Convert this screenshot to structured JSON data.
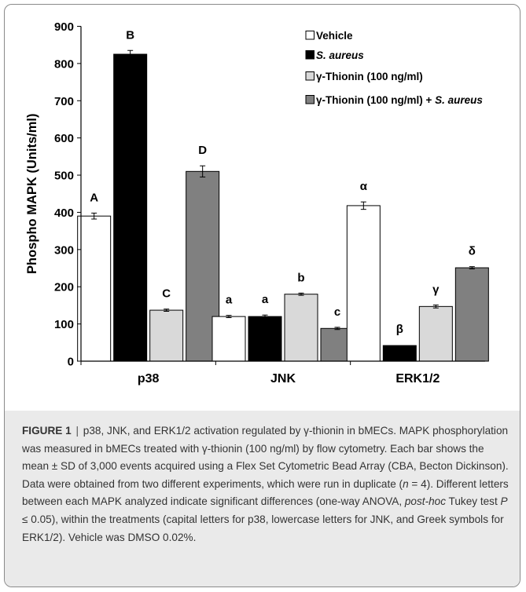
{
  "chart_data": {
    "type": "bar",
    "ylabel": "Phospho MAPK (Units/ml)",
    "xlabel": "",
    "ylim": [
      0,
      900
    ],
    "yticks": [
      0,
      100,
      200,
      300,
      400,
      500,
      600,
      700,
      800,
      900
    ],
    "categories": [
      "p38",
      "JNK",
      "ERK1/2"
    ],
    "series": [
      {
        "name": "Vehicle",
        "color": "#ffffff",
        "values": [
          390,
          120,
          418
        ],
        "errors": [
          8,
          3,
          10
        ],
        "letters": [
          "A",
          "a",
          "α"
        ]
      },
      {
        "name": "S. aureus",
        "color": "#000000",
        "values": [
          825,
          120,
          42
        ],
        "errors": [
          10,
          4,
          0
        ],
        "letters": [
          "B",
          "a",
          "β"
        ]
      },
      {
        "name": "γ-Thionin (100 ng/ml)",
        "color": "#d9d9d9",
        "values": [
          137,
          180,
          147
        ],
        "errors": [
          3,
          3,
          4
        ],
        "letters": [
          "C",
          "b",
          "γ"
        ]
      },
      {
        "name": "γ-Thionin (100 ng/ml) + S. aureus",
        "color": "#808080",
        "values": [
          510,
          88,
          251
        ],
        "errors": [
          15,
          3,
          3
        ],
        "letters": [
          "D",
          "c",
          "δ"
        ]
      }
    ],
    "legend": {
      "position": "top-right",
      "entries": [
        {
          "plain": "Vehicle",
          "italic": ""
        },
        {
          "plain": "",
          "italic": "S. aureus"
        },
        {
          "plain": "γ-Thionin (100 ng/ml)",
          "italic": ""
        },
        {
          "plain": "γ-Thionin (100 ng/ml) + ",
          "italic": "S. aureus"
        }
      ]
    }
  },
  "caption": {
    "label": "FIGURE 1",
    "separator": "|",
    "html": "p38, JNK, and ERK1/2 activation regulated by γ-thionin in bMECs. MAPK phosphorylation was measured in bMECs treated with γ-thionin (100 ng/ml) by flow cytometry. Each bar shows the mean ± SD of 3,000 events acquired using a Flex Set Cytometric Bead Array (CBA, Becton Dickinson). Data were obtained from two different experiments, which were run in duplicate (<i>n</i> = 4). Different letters between each MAPK analyzed indicate significant differences (one-way ANOVA, <i>post-hoc</i> Tukey test <i>P</i> ≤ 0.05), within the treatments (capital letters for p38, lowercase letters for JNK, and Greek symbols for ERK1/2). Vehicle was DMSO 0.02%."
  }
}
